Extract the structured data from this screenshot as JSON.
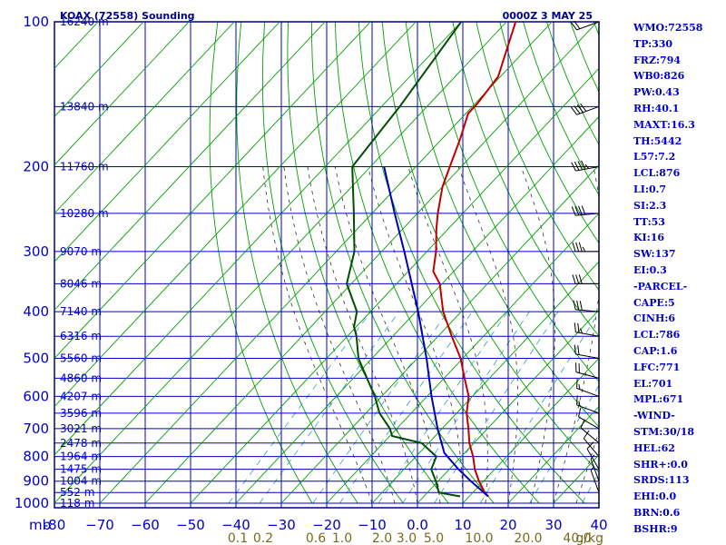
{
  "title": "KOAX (72558) Sounding",
  "valid_time": "0000Z  3 MAY 25",
  "colors": {
    "frame": "#00008b",
    "grid": "#0000cd",
    "dry_adiabat": "#00a000",
    "moist_adiabat": "#333333",
    "mixing_ratio": "#3399cc",
    "temperature": "#c00000",
    "dewpoint": "#004d00",
    "parcel": "#0000b0",
    "labels": "#0000c8",
    "mixing_label": "#7a6a1e",
    "wind": "#000000"
  },
  "indices": [
    "WMO:72558",
    "TP:330",
    "FRZ:794",
    "WB0:826",
    "PW:0.43",
    "RH:40.1",
    "MAXT:16.3",
    "TH:5442",
    "L57:7.2",
    "LCL:876",
    "LI:0.7",
    "SI:2.3",
    "TT:53",
    "KI:16",
    "SW:137",
    "EI:0.3",
    "-PARCEL-",
    "CAPE:5",
    "CINH:6",
    "LCL:786",
    "CAP:1.6",
    "LFC:771",
    "EL:701",
    "MPL:671",
    "-WIND-",
    "STM:30/18",
    "HEL:62",
    "SHR+:0.0",
    "SRDS:113",
    "EHI:0.0",
    "BRN:0.6",
    "BSHR:9"
  ],
  "chart_data": {
    "type": "line",
    "diagram": "skew-T log-p",
    "xlabel": "",
    "ylabel": "mb",
    "pressure_range_mb": [
      1000,
      100
    ],
    "temperature_range_c": [
      -80,
      40
    ],
    "pressure_ticks": [
      100,
      200,
      300,
      400,
      500,
      600,
      700,
      800,
      900,
      1000
    ],
    "temperature_ticks": [
      -80,
      -70,
      -60,
      -50,
      -40,
      -30,
      -20,
      -10,
      0,
      10,
      20,
      30,
      40
    ],
    "temperature_tick_labels": [
      "-80",
      "−70",
      "−60",
      "−50",
      "−40",
      "−30",
      "−20",
      "−10",
      "0.0",
      "10",
      "20",
      "30",
      "40"
    ],
    "axis_unit_label": "mb",
    "mixing_ratio_labels": [
      "0.1",
      "0.2",
      "0.6",
      "1.0",
      "2.0",
      "3.0",
      "5.0",
      "10.0",
      "20.0",
      "40.0"
    ],
    "mixing_ratio_unit": "g/kg",
    "height_labels": [
      {
        "p": 100,
        "label": "16240 m"
      },
      {
        "p": 150,
        "label": "13840 m"
      },
      {
        "p": 200,
        "label": "11760 m"
      },
      {
        "p": 250,
        "label": "10280 m"
      },
      {
        "p": 300,
        "label": "9070 m"
      },
      {
        "p": 350,
        "label": "8046 m"
      },
      {
        "p": 400,
        "label": "7140 m"
      },
      {
        "p": 450,
        "label": "6316 m"
      },
      {
        "p": 500,
        "label": "5560 m"
      },
      {
        "p": 550,
        "label": "4860 m"
      },
      {
        "p": 600,
        "label": "4207 m"
      },
      {
        "p": 650,
        "label": "3596 m"
      },
      {
        "p": 700,
        "label": "3021 m"
      },
      {
        "p": 750,
        "label": "2478 m"
      },
      {
        "p": 800,
        "label": "1964 m"
      },
      {
        "p": 850,
        "label": "1475 m"
      },
      {
        "p": 900,
        "label": "1004 m"
      },
      {
        "p": 950,
        "label": "552 m"
      },
      {
        "p": 1000,
        "label": "118 m"
      }
    ],
    "series": [
      {
        "name": "Temperature",
        "points": [
          {
            "p": 968,
            "t": 14.2
          },
          {
            "p": 950,
            "t": 12.6
          },
          {
            "p": 900,
            "t": 9.0
          },
          {
            "p": 850,
            "t": 5.6
          },
          {
            "p": 800,
            "t": 2.6
          },
          {
            "p": 750,
            "t": -1.0
          },
          {
            "p": 700,
            "t": -4.2
          },
          {
            "p": 650,
            "t": -7.8
          },
          {
            "p": 600,
            "t": -10.8
          },
          {
            "p": 550,
            "t": -15.5
          },
          {
            "p": 500,
            "t": -20.5
          },
          {
            "p": 450,
            "t": -27.0
          },
          {
            "p": 400,
            "t": -34.0
          },
          {
            "p": 350,
            "t": -40.5
          },
          {
            "p": 330,
            "t": -44.5
          },
          {
            "p": 300,
            "t": -48.0
          },
          {
            "p": 270,
            "t": -52.5
          },
          {
            "p": 250,
            "t": -55.5
          },
          {
            "p": 220,
            "t": -60.0
          },
          {
            "p": 200,
            "t": -62.5
          },
          {
            "p": 175,
            "t": -66.0
          },
          {
            "p": 155,
            "t": -69.5
          },
          {
            "p": 148,
            "t": -69.5
          },
          {
            "p": 130,
            "t": -70.5
          },
          {
            "p": 100,
            "t": -78.0
          }
        ]
      },
      {
        "name": "Dewpoint",
        "points": [
          {
            "p": 968,
            "td": 8.0
          },
          {
            "p": 950,
            "td": 2.5
          },
          {
            "p": 900,
            "td": -0.5
          },
          {
            "p": 850,
            "td": -4.0
          },
          {
            "p": 800,
            "td": -5.5
          },
          {
            "p": 750,
            "td": -11.5
          },
          {
            "p": 725,
            "td": -19.5
          },
          {
            "p": 700,
            "td": -21.5
          },
          {
            "p": 650,
            "td": -27.0
          },
          {
            "p": 600,
            "td": -31.5
          },
          {
            "p": 550,
            "td": -37.0
          },
          {
            "p": 500,
            "td": -43.0
          },
          {
            "p": 450,
            "td": -48.0
          },
          {
            "p": 430,
            "td": -50.5
          },
          {
            "p": 400,
            "td": -53.0
          },
          {
            "p": 350,
            "td": -61.0
          },
          {
            "p": 300,
            "td": -66.0
          },
          {
            "p": 250,
            "td": -74.0
          },
          {
            "p": 200,
            "td": -84.0
          },
          {
            "p": 150,
            "td": -86.0
          },
          {
            "p": 100,
            "td": -90.0
          }
        ]
      },
      {
        "name": "Parcel",
        "points": [
          {
            "p": 968,
            "t": 14.2
          },
          {
            "p": 900,
            "t": 7.2
          },
          {
            "p": 850,
            "t": 2.0
          },
          {
            "p": 786,
            "t": -4.5
          },
          {
            "p": 700,
            "t": -11.0
          },
          {
            "p": 600,
            "t": -19.0
          },
          {
            "p": 500,
            "t": -28.0
          },
          {
            "p": 400,
            "t": -39.5
          },
          {
            "p": 300,
            "t": -55.0
          },
          {
            "p": 250,
            "t": -65.0
          },
          {
            "p": 200,
            "t": -77.0
          }
        ]
      }
    ],
    "wind_profile": [
      {
        "p": 100,
        "dir": 250,
        "spd": 20
      },
      {
        "p": 150,
        "dir": 250,
        "spd": 40
      },
      {
        "p": 200,
        "dir": 260,
        "spd": 45
      },
      {
        "p": 250,
        "dir": 265,
        "spd": 40
      },
      {
        "p": 300,
        "dir": 270,
        "spd": 35
      },
      {
        "p": 350,
        "dir": 270,
        "spd": 30
      },
      {
        "p": 400,
        "dir": 275,
        "spd": 30
      },
      {
        "p": 450,
        "dir": 280,
        "spd": 25
      },
      {
        "p": 500,
        "dir": 280,
        "spd": 20
      },
      {
        "p": 550,
        "dir": 285,
        "spd": 20
      },
      {
        "p": 600,
        "dir": 290,
        "spd": 15
      },
      {
        "p": 650,
        "dir": 290,
        "spd": 15
      },
      {
        "p": 700,
        "dir": 300,
        "spd": 10
      },
      {
        "p": 750,
        "dir": 310,
        "spd": 10
      },
      {
        "p": 800,
        "dir": 320,
        "spd": 10
      },
      {
        "p": 850,
        "dir": 330,
        "spd": 10
      },
      {
        "p": 900,
        "dir": 340,
        "spd": 5
      },
      {
        "p": 950,
        "dir": 340,
        "spd": 5
      }
    ]
  }
}
